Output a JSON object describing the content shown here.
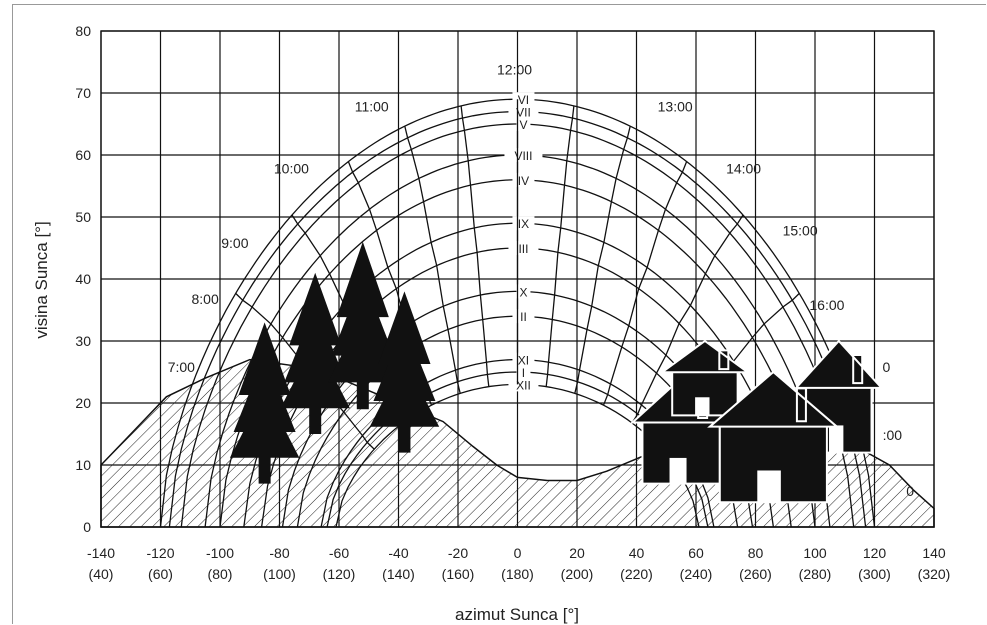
{
  "chart_data": {
    "type": "line",
    "title": "",
    "xlabel": "azimut Sunca [°]",
    "ylabel": "visina Sunca [°]",
    "xlim": [
      -140,
      140
    ],
    "ylim": [
      0,
      80
    ],
    "grid": true,
    "x_ticks": [
      {
        "value": -140,
        "label": "-140",
        "sublabel": "(40)"
      },
      {
        "value": -120,
        "label": "-120",
        "sublabel": "(60)"
      },
      {
        "value": -100,
        "label": "-100",
        "sublabel": "(80)"
      },
      {
        "value": -80,
        "label": "-80",
        "sublabel": "(100)"
      },
      {
        "value": -60,
        "label": "-60",
        "sublabel": "(120)"
      },
      {
        "value": -40,
        "label": "-40",
        "sublabel": "(140)"
      },
      {
        "value": -20,
        "label": "-20",
        "sublabel": "(160)"
      },
      {
        "value": 0,
        "label": "0",
        "sublabel": "(180)"
      },
      {
        "value": 20,
        "label": "20",
        "sublabel": "(200)"
      },
      {
        "value": 40,
        "label": "40",
        "sublabel": "(220)"
      },
      {
        "value": 60,
        "label": "60",
        "sublabel": "(240)"
      },
      {
        "value": 80,
        "label": "80",
        "sublabel": "(260)"
      },
      {
        "value": 100,
        "label": "100",
        "sublabel": "(280)"
      },
      {
        "value": 120,
        "label": "120",
        "sublabel": "(300)"
      },
      {
        "value": 140,
        "label": "140",
        "sublabel": "(320)"
      }
    ],
    "y_ticks": [
      0,
      10,
      20,
      30,
      40,
      50,
      60,
      70,
      80
    ],
    "series": [
      {
        "name": "VI",
        "max_altitude": 69,
        "half_width": 120
      },
      {
        "name": "VII",
        "max_altitude": 67,
        "half_width": 117
      },
      {
        "name": "V",
        "max_altitude": 65,
        "half_width": 113
      },
      {
        "name": "VIII",
        "max_altitude": 60,
        "half_width": 105
      },
      {
        "name": "IV",
        "max_altitude": 56,
        "half_width": 100
      },
      {
        "name": "IX",
        "max_altitude": 49,
        "half_width": 92
      },
      {
        "name": "III",
        "max_altitude": 45,
        "half_width": 86
      },
      {
        "name": "X",
        "max_altitude": 38,
        "half_width": 79
      },
      {
        "name": "II",
        "max_altitude": 34,
        "half_width": 74
      },
      {
        "name": "XI",
        "max_altitude": 27,
        "half_width": 66
      },
      {
        "name": "I",
        "max_altitude": 25,
        "half_width": 64
      },
      {
        "name": "XII",
        "max_altitude": 23,
        "half_width": 61
      }
    ],
    "hour_labels": [
      {
        "label": "7:00",
        "x": -113,
        "y": 25
      },
      {
        "label": "8:00",
        "x": -105,
        "y": 36
      },
      {
        "label": "9:00",
        "x": -95,
        "y": 45
      },
      {
        "label": "10:00",
        "x": -76,
        "y": 57
      },
      {
        "label": "11:00",
        "x": -49,
        "y": 67
      },
      {
        "label": "12:00",
        "x": -1,
        "y": 73
      },
      {
        "label": "13:00",
        "x": 53,
        "y": 67
      },
      {
        "label": "14:00",
        "x": 76,
        "y": 57
      },
      {
        "label": "15:00",
        "x": 95,
        "y": 47
      },
      {
        "label": "16:00",
        "x": 104,
        "y": 35
      },
      {
        "label": "0",
        "x": 124,
        "y": 25
      },
      {
        "label": ":00",
        "x": 126,
        "y": 14
      },
      {
        "label": "0",
        "x": 132,
        "y": 5
      }
    ],
    "horizon_profile": [
      [
        -140,
        10
      ],
      [
        -130,
        15
      ],
      [
        -118,
        21
      ],
      [
        -105,
        24
      ],
      [
        -90,
        27
      ],
      [
        -75,
        26
      ],
      [
        -60,
        24
      ],
      [
        -45,
        21
      ],
      [
        -35,
        19
      ],
      [
        -25,
        17
      ],
      [
        -15,
        13
      ],
      [
        -7,
        10
      ],
      [
        0,
        8
      ],
      [
        10,
        7.5
      ],
      [
        20,
        7.5
      ],
      [
        30,
        9
      ],
      [
        40,
        11
      ],
      [
        55,
        14
      ],
      [
        70,
        14
      ],
      [
        90,
        15
      ],
      [
        110,
        14
      ],
      [
        125,
        10
      ],
      [
        133,
        6
      ],
      [
        140,
        3
      ]
    ],
    "obstacles": [
      {
        "kind": "tree",
        "x": -85,
        "base": 7,
        "top": 33
      },
      {
        "kind": "tree",
        "x": -68,
        "base": 15,
        "top": 41
      },
      {
        "kind": "tree",
        "x": -52,
        "base": 19,
        "top": 46
      },
      {
        "kind": "tree",
        "x": -38,
        "base": 12,
        "top": 38
      },
      {
        "kind": "house",
        "x": 55,
        "width": 26,
        "base": 7,
        "top": 24
      },
      {
        "kind": "house",
        "x": 63,
        "width": 22,
        "base": 18,
        "top": 30
      },
      {
        "kind": "house",
        "x": 108,
        "width": 22,
        "base": 12,
        "top": 30
      },
      {
        "kind": "house",
        "x": 86,
        "width": 36,
        "base": 4,
        "top": 25
      }
    ]
  }
}
